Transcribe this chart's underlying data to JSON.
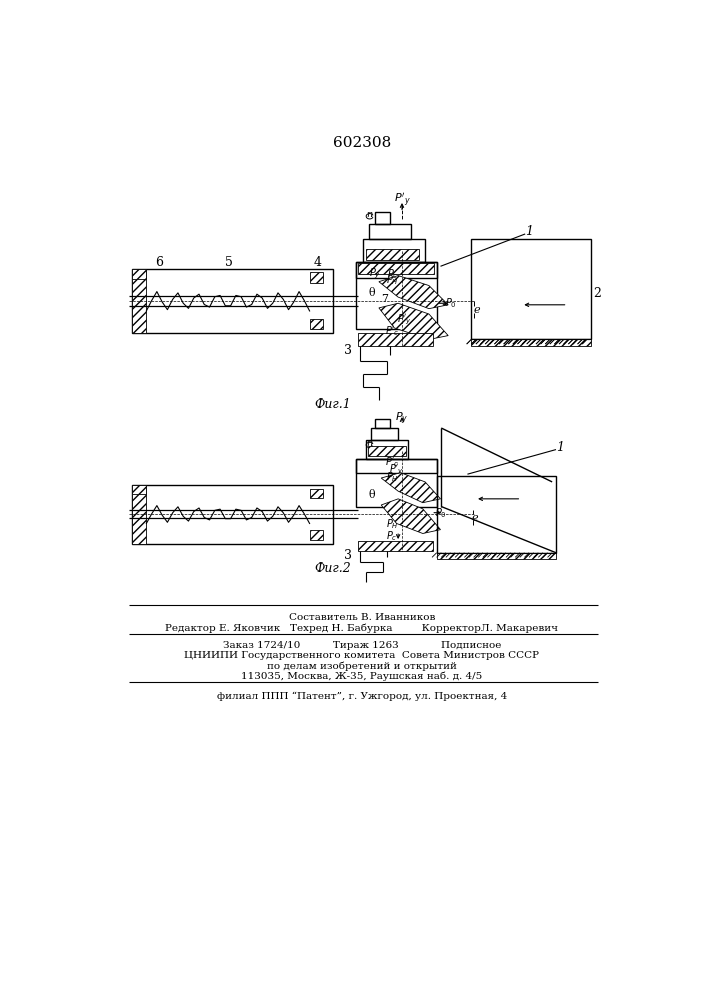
{
  "title": "602308",
  "fig1_label": "Фиг.1",
  "fig2_label": "Фиг.2",
  "bg_color": "#ffffff",
  "line_color": "#000000",
  "footer_line1": "Составитель В. Иванников",
  "footer_line2": "Редактор Е. Яковчик   Техред Н. Бабурка         КорректорЛ. Макаревич",
  "footer_line3": "Заказ 1724/10          Тираж 1263             Подписное",
  "footer_line4": "ЦНИИПИ Государственного комитета  Совета Министров СССР",
  "footer_line5": "по делам изобретений и открытий",
  "footer_line6": "113035, Москва, Ж-35, Раушская наб. д. 4/5",
  "footer_line7": "филиал ППП “Патент”, г. Ужгород, ул. Проектная, 4"
}
